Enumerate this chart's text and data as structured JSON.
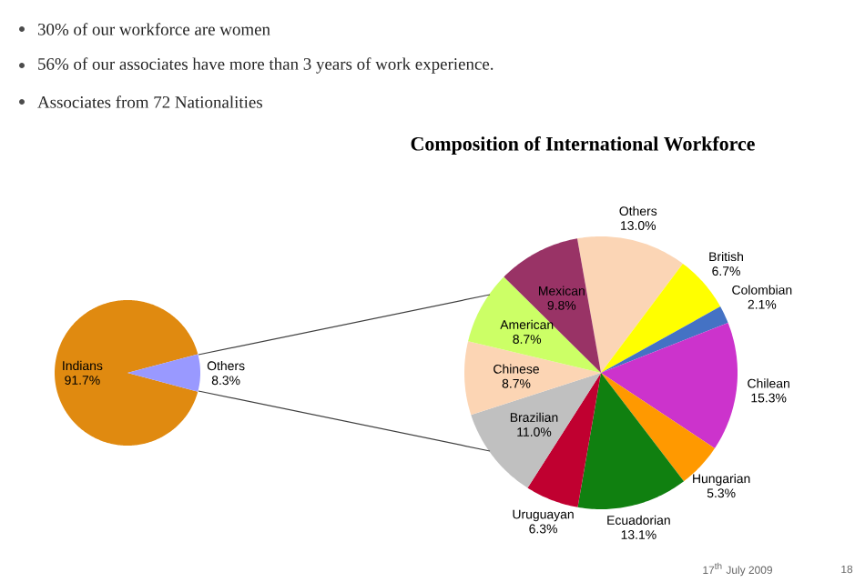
{
  "chart_data": [
    {
      "type": "pie",
      "categories": [
        "Indians",
        "Others"
      ],
      "values": [
        91.7,
        8.3
      ],
      "colors": [
        "#e08a10",
        "#9999ff"
      ],
      "value_labels": [
        "91.7%",
        "8.3%"
      ],
      "annotations": [
        "30% of our workforce are women",
        "56% of our associates have more than 3 years of work experience.",
        "Associates from 72 Nationalities"
      ]
    },
    {
      "type": "pie",
      "title": "Composition of International Workforce",
      "categories": [
        "Others",
        "British",
        "Colombian",
        "Chilean",
        "Hungarian",
        "Ecuadorian",
        "Uruguayan",
        "Brazilian",
        "Chinese",
        "American",
        "Mexican"
      ],
      "values": [
        13.0,
        6.7,
        2.1,
        15.3,
        5.3,
        13.1,
        6.3,
        11.0,
        8.7,
        8.7,
        9.8
      ],
      "colors": [
        "#fbd5b5",
        "#ffff00",
        "#4472c4",
        "#cc33cc",
        "#ff9900",
        "#108010",
        "#c00030",
        "#c0c0c0",
        "#fcd5b4",
        "#ccff66",
        "#993366"
      ],
      "value_labels": [
        "13.0%",
        "6.7%",
        "2.1%",
        "15.3%",
        "5.3%",
        "13.1%",
        "6.3%",
        "11.0%",
        "8.7%",
        "8.7%",
        "9.8%"
      ],
      "annotations": [
        "17$^{th}$ July 2009",
        "18"
      ]
    }
  ]
}
